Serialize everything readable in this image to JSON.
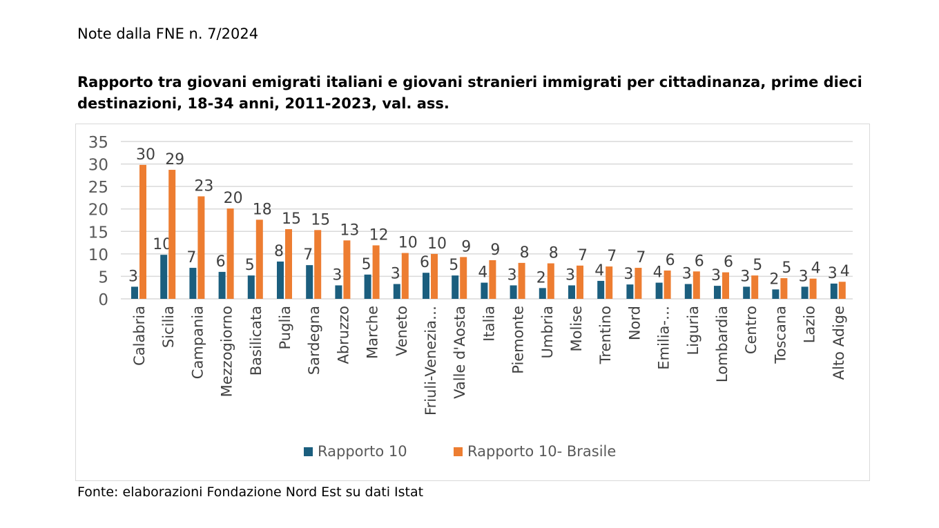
{
  "note": "Note dalla FNE n. 7/2024",
  "source": "Fonte: elaborazioni Fondazione Nord Est su dati Istat",
  "colors": {
    "series1": "#1B5E7E",
    "series2": "#ED7D31",
    "grid": "#d9d9d9",
    "text": "#595959"
  },
  "chart_data": {
    "type": "bar",
    "title": "Rapporto tra giovani emigrati italiani e giovani stranieri immigrati per cittadinanza, prime dieci destinazioni, 18-34 anni, 2011-2023, val. ass.",
    "xlabel": "",
    "ylabel": "",
    "ylim": [
      0,
      35
    ],
    "yticks": [
      0,
      5,
      10,
      15,
      20,
      25,
      30,
      35
    ],
    "grid": true,
    "legend": "bottom",
    "categories": [
      "Calabria",
      "Sicilia",
      "Campania",
      "Mezzogiorno",
      "Basilicata",
      "Puglia",
      "Sardegna",
      "Abruzzo",
      "Marche",
      "Veneto",
      "Friuli-Venezia…",
      "Valle d'Aosta",
      "Italia",
      "Piemonte",
      "Umbria",
      "Molise",
      "Trentino",
      "Nord",
      "Emilia-…",
      "Liguria",
      "Lombardia",
      "Centro",
      "Toscana",
      "Lazio",
      "Alto Adige"
    ],
    "series": [
      {
        "name": "Rapporto 10",
        "values": [
          2.7,
          9.8,
          6.9,
          6.0,
          5.2,
          8.3,
          7.5,
          3.0,
          5.4,
          3.3,
          5.8,
          5.2,
          3.6,
          3.0,
          2.4,
          3.0,
          4.0,
          3.2,
          3.6,
          3.3,
          2.9,
          2.7,
          2.1,
          2.7,
          3.4
        ],
        "labels": [
          "3",
          "10",
          "7",
          "6",
          "5",
          "8",
          "7",
          "3",
          "5",
          "3",
          "6",
          "5",
          "4",
          "3",
          "2",
          "3",
          "4",
          "3",
          "4",
          "3",
          "3",
          "3",
          "2",
          "3",
          "3"
        ]
      },
      {
        "name": "Rapporto 10- Brasile",
        "values": [
          29.8,
          28.7,
          22.8,
          20.1,
          17.6,
          15.5,
          15.3,
          13.0,
          11.9,
          10.2,
          10.0,
          9.3,
          8.6,
          8.0,
          7.9,
          7.4,
          7.2,
          6.9,
          6.3,
          6.1,
          5.9,
          5.2,
          4.6,
          4.5,
          3.8
        ],
        "labels": [
          "30",
          "29",
          "23",
          "20",
          "18",
          "15",
          "15",
          "13",
          "12",
          "10",
          "10",
          "9",
          "9",
          "8",
          "8",
          "7",
          "7",
          "7",
          "6",
          "6",
          "6",
          "5",
          "5",
          "4",
          "4"
        ]
      }
    ]
  }
}
